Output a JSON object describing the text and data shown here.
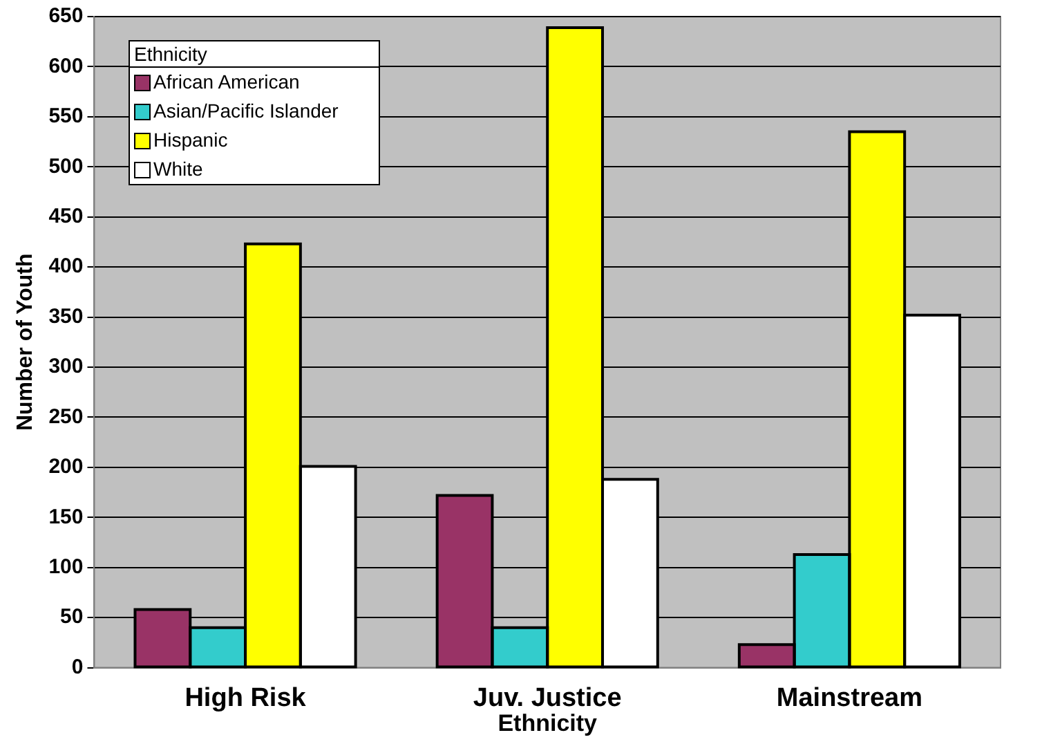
{
  "chart_data": {
    "type": "bar",
    "xlabel": "Ethnicity",
    "ylabel": "Number of Youth",
    "legend_title": "Ethnicity",
    "categories": [
      "High Risk",
      "Juv. Justice",
      "Mainstream"
    ],
    "series": [
      {
        "name": "African American",
        "color": "#993366",
        "values": [
          58,
          172,
          23
        ]
      },
      {
        "name": "Asian/Pacific Islander",
        "color": "#33cccc",
        "values": [
          40,
          40,
          113
        ]
      },
      {
        "name": "Hispanic",
        "color": "#ffff00",
        "values": [
          423,
          639,
          535
        ]
      },
      {
        "name": "White",
        "color": "#ffffff",
        "values": [
          201,
          188,
          352
        ]
      }
    ],
    "ylim": [
      0,
      650
    ],
    "yticks": [
      0,
      50,
      100,
      150,
      200,
      250,
      300,
      350,
      400,
      450,
      500,
      550,
      600,
      650
    ],
    "grid": "y",
    "legend": "top left"
  }
}
